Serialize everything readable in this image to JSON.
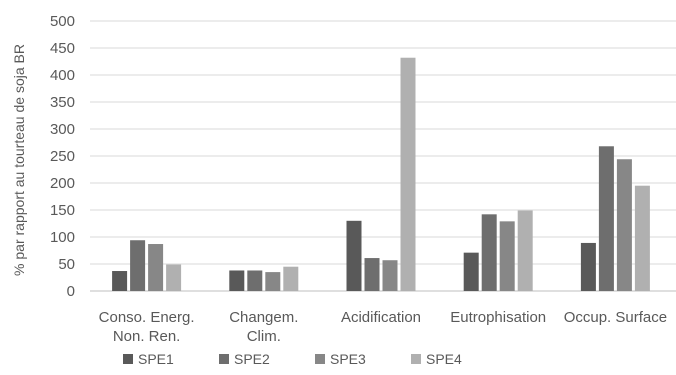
{
  "chart_data": {
    "type": "bar",
    "title": "",
    "xlabel": "",
    "ylabel": "% par rapport au tourteau de soja BR",
    "ylim": [
      0,
      500
    ],
    "yticks": [
      0,
      50,
      100,
      150,
      200,
      250,
      300,
      350,
      400,
      450,
      500
    ],
    "grid": true,
    "legend_position": "bottom",
    "categories": [
      [
        "Conso. Energ.",
        "Non. Ren."
      ],
      [
        "Changem.",
        "Clim."
      ],
      [
        "Acidification"
      ],
      [
        "Eutrophisation"
      ],
      [
        "Occup. Surface"
      ]
    ],
    "series": [
      {
        "name": "SPE1",
        "color": "#595959",
        "values": [
          37,
          38,
          130,
          71,
          89
        ]
      },
      {
        "name": "SPE2",
        "color": "#6e6e6e",
        "values": [
          94,
          38,
          61,
          142,
          268
        ]
      },
      {
        "name": "SPE3",
        "color": "#878787",
        "values": [
          87,
          35,
          57,
          129,
          244
        ]
      },
      {
        "name": "SPE4",
        "color": "#b0b0b0",
        "values": [
          49,
          45,
          432,
          149,
          195
        ]
      }
    ]
  }
}
